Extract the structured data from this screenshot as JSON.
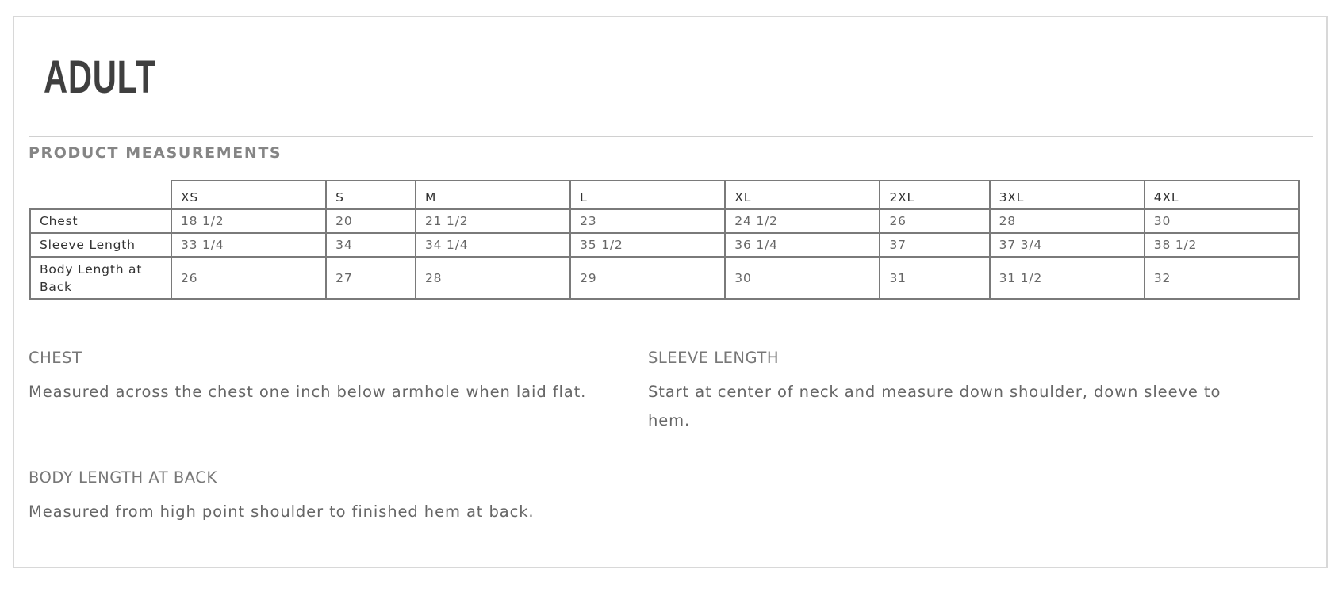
{
  "title": "ADULT",
  "subtitle": "PRODUCT MEASUREMENTS",
  "table": {
    "sizes": [
      "XS",
      "S",
      "M",
      "L",
      "XL",
      "2XL",
      "3XL",
      "4XL"
    ],
    "rows": [
      {
        "label": "Chest",
        "values": [
          "18 1/2",
          "20",
          "21 1/2",
          "23",
          "24 1/2",
          "26",
          "28",
          "30"
        ]
      },
      {
        "label": "Sleeve Length",
        "values": [
          "33 1/4",
          "34",
          "34 1/4",
          "35 1/2",
          "36 1/4",
          "37",
          "37 3/4",
          "38 1/2"
        ]
      },
      {
        "label": "Body Length at Back",
        "values": [
          "26",
          "27",
          "28",
          "29",
          "30",
          "31",
          "31 1/2",
          "32"
        ]
      }
    ]
  },
  "descriptions": {
    "chest": {
      "heading": "CHEST",
      "text": "Measured across the chest one inch below armhole when laid flat."
    },
    "sleeve": {
      "heading": "SLEEVE LENGTH",
      "text": "Start at center of neck and measure down shoulder, down sleeve to hem."
    },
    "body": {
      "heading": "BODY LENGTH AT BACK",
      "text": "Measured from high point shoulder to finished hem at back."
    }
  }
}
